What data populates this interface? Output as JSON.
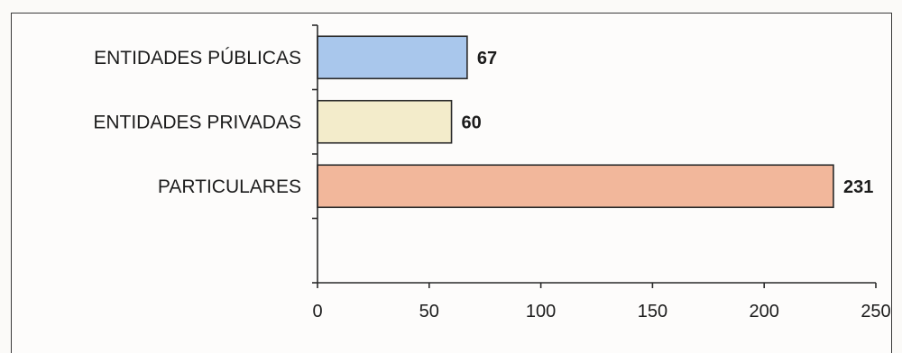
{
  "chart_data": {
    "type": "bar",
    "orientation": "horizontal",
    "categories": [
      "ENTIDADES PÚBLICAS",
      "ENTIDADES PRIVADAS",
      "PARTICULARES"
    ],
    "values": [
      67,
      60,
      231
    ],
    "data_labels": [
      "67",
      "60",
      "231"
    ],
    "xlim": [
      0,
      250
    ],
    "x_ticks": [
      0,
      50,
      100,
      150,
      200,
      250
    ],
    "x_tick_labels": [
      "0",
      "50",
      "100",
      "150",
      "200",
      "250"
    ],
    "grid": false,
    "legend": "none",
    "colors": {
      "ENTIDADES PÚBLICAS": "#a9c7ec",
      "ENTIDADES PRIVADAS": "#f3eccb",
      "PARTICULARES": "#f2b79b"
    }
  }
}
